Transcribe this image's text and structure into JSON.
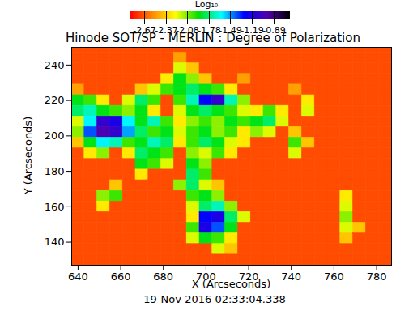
{
  "chart_data": {
    "type": "heatmap",
    "title": "Hinode SOT/SP - MERLIN : Degree of Polarization",
    "x_label": "X (Arcseconds)",
    "y_label": "Y (Arcseconds)",
    "annotation": "19-Nov-2016 02:33:04.338",
    "xlim": [
      637,
      787
    ],
    "ylim": [
      127,
      250
    ],
    "xticks": [
      640,
      660,
      680,
      700,
      720,
      740,
      760,
      780
    ],
    "yticks": [
      140,
      160,
      180,
      200,
      220,
      240
    ],
    "x": [
      637,
      643,
      649,
      655,
      661,
      667,
      673,
      679,
      685,
      691,
      697,
      703,
      709,
      715,
      721,
      727,
      733,
      739,
      745,
      751,
      757,
      763,
      769,
      775,
      781,
      787
    ],
    "y": [
      250,
      247,
      241,
      235,
      229,
      223,
      217,
      211,
      205,
      199,
      193,
      187,
      181,
      175,
      169,
      163,
      157,
      151,
      145,
      139,
      133,
      127
    ],
    "values": [
      [
        -2.7,
        -2.7,
        -2.7,
        -2.7,
        -2.7,
        -2.7,
        -2.7,
        -2.7,
        -2.7,
        -2.7,
        -2.7,
        -2.7,
        -2.7,
        -2.7,
        -2.7,
        -2.7,
        -2.7,
        -2.7,
        -2.7,
        -2.7,
        -2.7,
        -2.7,
        -2.7,
        -2.7,
        -2.7
      ],
      [
        -2.7,
        -2.7,
        -2.7,
        -2.7,
        -2.7,
        -2.7,
        -2.7,
        -2.7,
        -2.5,
        -2.7,
        -2.7,
        -2.7,
        -2.7,
        -2.7,
        -2.7,
        -2.7,
        -2.7,
        -2.7,
        -2.7,
        -2.7,
        -2.7,
        -2.7,
        -2.7,
        -2.7,
        -2.7
      ],
      [
        -2.7,
        -2.7,
        -2.7,
        -2.7,
        -2.7,
        -2.7,
        -2.7,
        -2.7,
        -2.2,
        -2.4,
        -2.7,
        -2.7,
        -2.7,
        -2.7,
        -2.7,
        -2.7,
        -2.7,
        -2.7,
        -2.7,
        -2.7,
        -2.7,
        -2.7,
        -2.7,
        -2.7,
        -2.7
      ],
      [
        -2.7,
        -2.7,
        -2.7,
        -2.7,
        -2.7,
        -2.7,
        -2.7,
        -2.3,
        -1.9,
        -2.1,
        -2.4,
        -2.7,
        -2.7,
        -2.5,
        -2.7,
        -2.7,
        -2.7,
        -2.7,
        -2.7,
        -2.7,
        -2.7,
        -2.7,
        -2.7,
        -2.7,
        -2.7
      ],
      [
        -2.5,
        -2.7,
        -2.7,
        -2.7,
        -2.7,
        -2.4,
        -2.2,
        -2.0,
        -1.9,
        -1.8,
        -1.9,
        -2.0,
        -2.3,
        -2.7,
        -2.7,
        -2.7,
        -2.7,
        -2.5,
        -2.7,
        -2.7,
        -2.7,
        -2.7,
        -2.7,
        -2.7,
        -2.7
      ],
      [
        -1.9,
        -2.0,
        -2.3,
        -2.7,
        -2.2,
        -1.8,
        -2.0,
        -2.7,
        -2.0,
        -1.7,
        -1.3,
        -1.1,
        -1.7,
        -2.1,
        -2.7,
        -2.7,
        -2.7,
        -2.7,
        -2.3,
        -2.7,
        -2.7,
        -2.7,
        -2.7,
        -2.7,
        -2.7
      ],
      [
        -1.8,
        -1.7,
        -1.9,
        -2.0,
        -2.1,
        -1.9,
        -2.3,
        -2.7,
        -2.2,
        -1.9,
        -1.8,
        -1.9,
        -2.0,
        -2.2,
        -2.3,
        -2.0,
        -2.3,
        -2.7,
        -2.2,
        -2.7,
        -2.7,
        -2.7,
        -2.7,
        -2.7,
        -2.7
      ],
      [
        -2.2,
        -1.6,
        -1.1,
        -1.2,
        -1.6,
        -1.9,
        -1.7,
        -2.0,
        -2.3,
        -2.1,
        -2.0,
        -2.1,
        -1.9,
        -2.0,
        -1.9,
        -1.8,
        -2.2,
        -2.7,
        -2.7,
        -2.7,
        -2.7,
        -2.7,
        -2.7,
        -2.7,
        -2.7
      ],
      [
        -2.1,
        -1.4,
        -1.0,
        -1.1,
        -1.5,
        -1.8,
        -2.0,
        -1.9,
        -2.2,
        -2.0,
        -1.9,
        -2.1,
        -2.0,
        -2.3,
        -2.1,
        -2.2,
        -2.7,
        -2.4,
        -2.7,
        -2.7,
        -2.7,
        -2.7,
        -2.7,
        -2.7,
        -2.7
      ],
      [
        -2.4,
        -1.9,
        -1.6,
        -1.7,
        -2.0,
        -1.9,
        -1.7,
        -1.8,
        -2.3,
        -2.0,
        -1.8,
        -1.9,
        -2.2,
        -2.3,
        -2.7,
        -2.7,
        -2.7,
        -2.0,
        -2.4,
        -2.7,
        -2.7,
        -2.7,
        -2.7,
        -2.7,
        -2.7
      ],
      [
        -2.7,
        -2.3,
        -2.1,
        -2.7,
        -2.3,
        -1.8,
        -1.9,
        -2.0,
        -2.7,
        -2.1,
        -2.2,
        -2.0,
        -2.3,
        -2.7,
        -2.7,
        -2.7,
        -2.7,
        -2.2,
        -2.7,
        -2.7,
        -2.7,
        -2.7,
        -2.7,
        -2.7,
        -2.7
      ],
      [
        -2.7,
        -2.7,
        -2.7,
        -2.7,
        -2.7,
        -1.9,
        -2.0,
        -2.2,
        -2.7,
        -1.9,
        -2.1,
        -2.7,
        -2.7,
        -2.7,
        -2.7,
        -2.7,
        -2.7,
        -2.7,
        -2.7,
        -2.7,
        -2.7,
        -2.7,
        -2.7,
        -2.7,
        -2.7
      ],
      [
        -2.7,
        -2.7,
        -2.7,
        -2.7,
        -2.7,
        -2.3,
        -2.7,
        -2.7,
        -2.7,
        -1.8,
        -2.0,
        -2.7,
        -2.7,
        -2.7,
        -2.7,
        -2.7,
        -2.7,
        -2.7,
        -2.7,
        -2.7,
        -2.7,
        -2.7,
        -2.7,
        -2.7,
        -2.7
      ],
      [
        -2.7,
        -2.7,
        -2.7,
        -2.4,
        -2.7,
        -2.7,
        -2.7,
        -2.7,
        -2.1,
        -1.8,
        -2.2,
        -2.4,
        -2.7,
        -2.7,
        -2.7,
        -2.7,
        -2.7,
        -2.7,
        -2.7,
        -2.7,
        -2.7,
        -2.7,
        -2.7,
        -2.7,
        -2.7
      ],
      [
        -2.7,
        -2.7,
        -2.1,
        -2.0,
        -2.7,
        -2.7,
        -2.7,
        -2.7,
        -2.7,
        -2.0,
        -1.9,
        -2.1,
        -2.7,
        -2.7,
        -2.7,
        -2.7,
        -2.7,
        -2.7,
        -2.7,
        -2.7,
        -2.7,
        -2.3,
        -2.7,
        -2.7,
        -2.7
      ],
      [
        -2.7,
        -2.7,
        -2.3,
        -2.7,
        -2.7,
        -2.7,
        -2.7,
        -2.7,
        -2.7,
        -2.2,
        -1.8,
        -1.7,
        -2.1,
        -2.7,
        -2.7,
        -2.7,
        -2.7,
        -2.7,
        -2.7,
        -2.7,
        -2.7,
        -2.2,
        -2.7,
        -2.7,
        -2.7
      ],
      [
        -2.7,
        -2.7,
        -2.7,
        -2.7,
        -2.7,
        -2.7,
        -2.7,
        -2.7,
        -2.7,
        -2.3,
        -1.3,
        -1.2,
        -1.8,
        -2.2,
        -2.7,
        -2.7,
        -2.7,
        -2.7,
        -2.7,
        -2.7,
        -2.7,
        -2.1,
        -2.7,
        -2.7,
        -2.7
      ],
      [
        -2.7,
        -2.7,
        -2.7,
        -2.7,
        -2.7,
        -2.7,
        -2.7,
        -2.7,
        -2.7,
        -2.0,
        -1.2,
        -1.4,
        -1.9,
        -2.7,
        -2.7,
        -2.7,
        -2.7,
        -2.7,
        -2.7,
        -2.7,
        -2.7,
        -2.2,
        -2.4,
        -2.7,
        -2.7
      ],
      [
        -2.7,
        -2.7,
        -2.7,
        -2.7,
        -2.7,
        -2.7,
        -2.7,
        -2.7,
        -2.7,
        -2.2,
        -1.9,
        -2.0,
        -2.3,
        -2.7,
        -2.7,
        -2.7,
        -2.7,
        -2.7,
        -2.7,
        -2.7,
        -2.7,
        -2.4,
        -2.7,
        -2.7,
        -2.7
      ],
      [
        -2.7,
        -2.7,
        -2.7,
        -2.7,
        -2.7,
        -2.7,
        -2.7,
        -2.7,
        -2.7,
        -2.7,
        -2.7,
        -2.2,
        -2.4,
        -2.7,
        -2.7,
        -2.7,
        -2.7,
        -2.7,
        -2.7,
        -2.7,
        -2.7,
        -2.7,
        -2.7,
        -2.7,
        -2.7
      ],
      [
        -2.7,
        -2.7,
        -2.7,
        -2.7,
        -2.7,
        -2.7,
        -2.7,
        -2.7,
        -2.7,
        -2.7,
        -2.7,
        -2.7,
        -2.7,
        -2.7,
        -2.7,
        -2.7,
        -2.7,
        -2.7,
        -2.7,
        -2.7,
        -2.7,
        -2.7,
        -2.7,
        -2.7,
        -2.7
      ]
    ],
    "colorbar": {
      "label": "Log₁₀",
      "range": [
        -2.87,
        -0.67
      ],
      "ticks": [
        -2.67,
        -2.37,
        -2.08,
        -1.78,
        -1.49,
        -1.19,
        -0.89
      ]
    }
  }
}
